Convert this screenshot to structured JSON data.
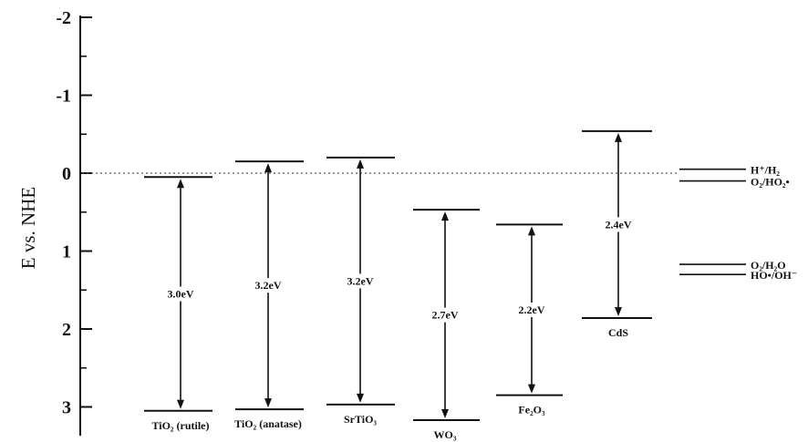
{
  "chart_data": {
    "type": "band-diagram",
    "ylabel": "E vs. NHE",
    "ylim": [
      -2,
      3.3
    ],
    "y_inverted": true,
    "yticks": [
      -2,
      -1,
      0,
      1,
      2,
      3
    ],
    "ytick_labels": [
      "-2",
      "-1",
      "0",
      "1",
      "2",
      "3"
    ],
    "reference_line_y": 0,
    "materials": [
      {
        "label": "TiO₂ (rutile)",
        "cb": 0.05,
        "vb": 3.05,
        "gap_label": "3.0eV"
      },
      {
        "label": "TiO₂ (anatase)",
        "cb": -0.15,
        "vb": 3.03,
        "gap_label": "3.2eV"
      },
      {
        "label": "SrTiO₃",
        "cb": -0.2,
        "vb": 2.97,
        "gap_label": "3.2eV"
      },
      {
        "label": "WO₃",
        "cb": 0.47,
        "vb": 3.17,
        "gap_label": "2.7eV"
      },
      {
        "label": "Fe₂O₃",
        "cb": 0.66,
        "vb": 2.85,
        "gap_label": "2.2eV"
      },
      {
        "label": "CdS",
        "cb": -0.54,
        "vb": 1.86,
        "gap_label": "2.4eV"
      }
    ],
    "redox_couples": [
      {
        "label": "H⁺/H₂",
        "potential": -0.05
      },
      {
        "label": "O₂/HO₂•",
        "potential": 0.1
      },
      {
        "label": "O₂/H₂O",
        "potential": 1.17
      },
      {
        "label": "HO•/OH⁻",
        "potential": 1.3
      }
    ]
  }
}
